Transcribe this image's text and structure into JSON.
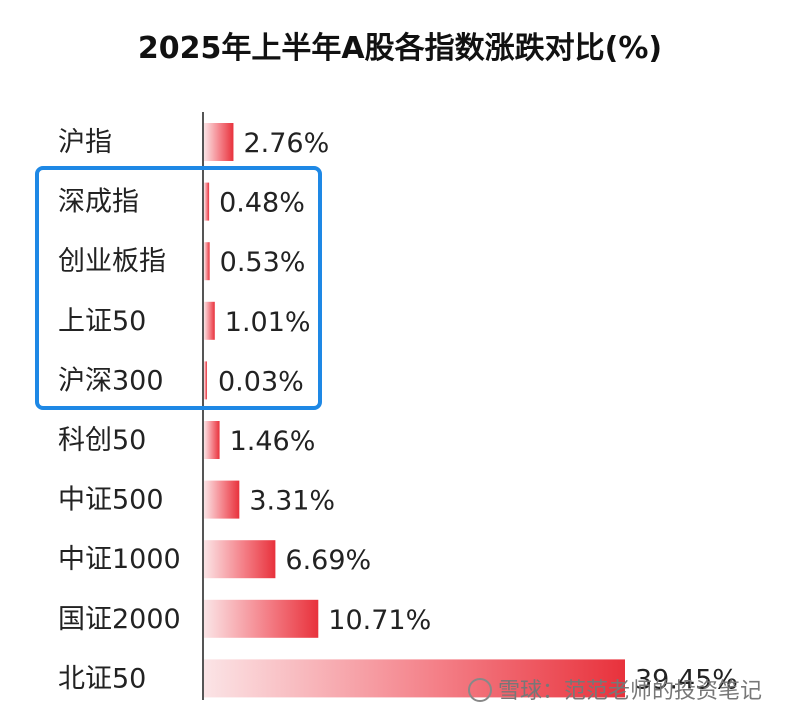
{
  "chart_data": {
    "type": "bar",
    "orientation": "horizontal",
    "title": "2025年上半年A股各指数涨跌对比(%)",
    "categories": [
      "沪指",
      "深成指",
      "创业板指",
      "上证50",
      "沪深300",
      "科创50",
      "中证500",
      "中证1000",
      "国证2000",
      "北证50"
    ],
    "values": [
      2.76,
      0.48,
      0.53,
      1.01,
      0.03,
      1.46,
      3.31,
      6.69,
      10.71,
      39.45
    ],
    "value_labels": [
      "2.76%",
      "0.48%",
      "0.53%",
      "1.01%",
      "0.03%",
      "1.46%",
      "3.31%",
      "6.69%",
      "10.71%",
      "39.45%"
    ],
    "highlighted_categories": [
      "深成指",
      "创业板指",
      "上证50",
      "沪深300"
    ],
    "xlabel": "",
    "ylabel": "",
    "grid": false,
    "colors": {
      "bar": "#e8323c",
      "bar_fade": "#fbe1e3",
      "highlight_box": "#1e88e5",
      "axis": "#555555"
    }
  },
  "watermark": {
    "source": "雪球：范范老师的投资笔记"
  }
}
